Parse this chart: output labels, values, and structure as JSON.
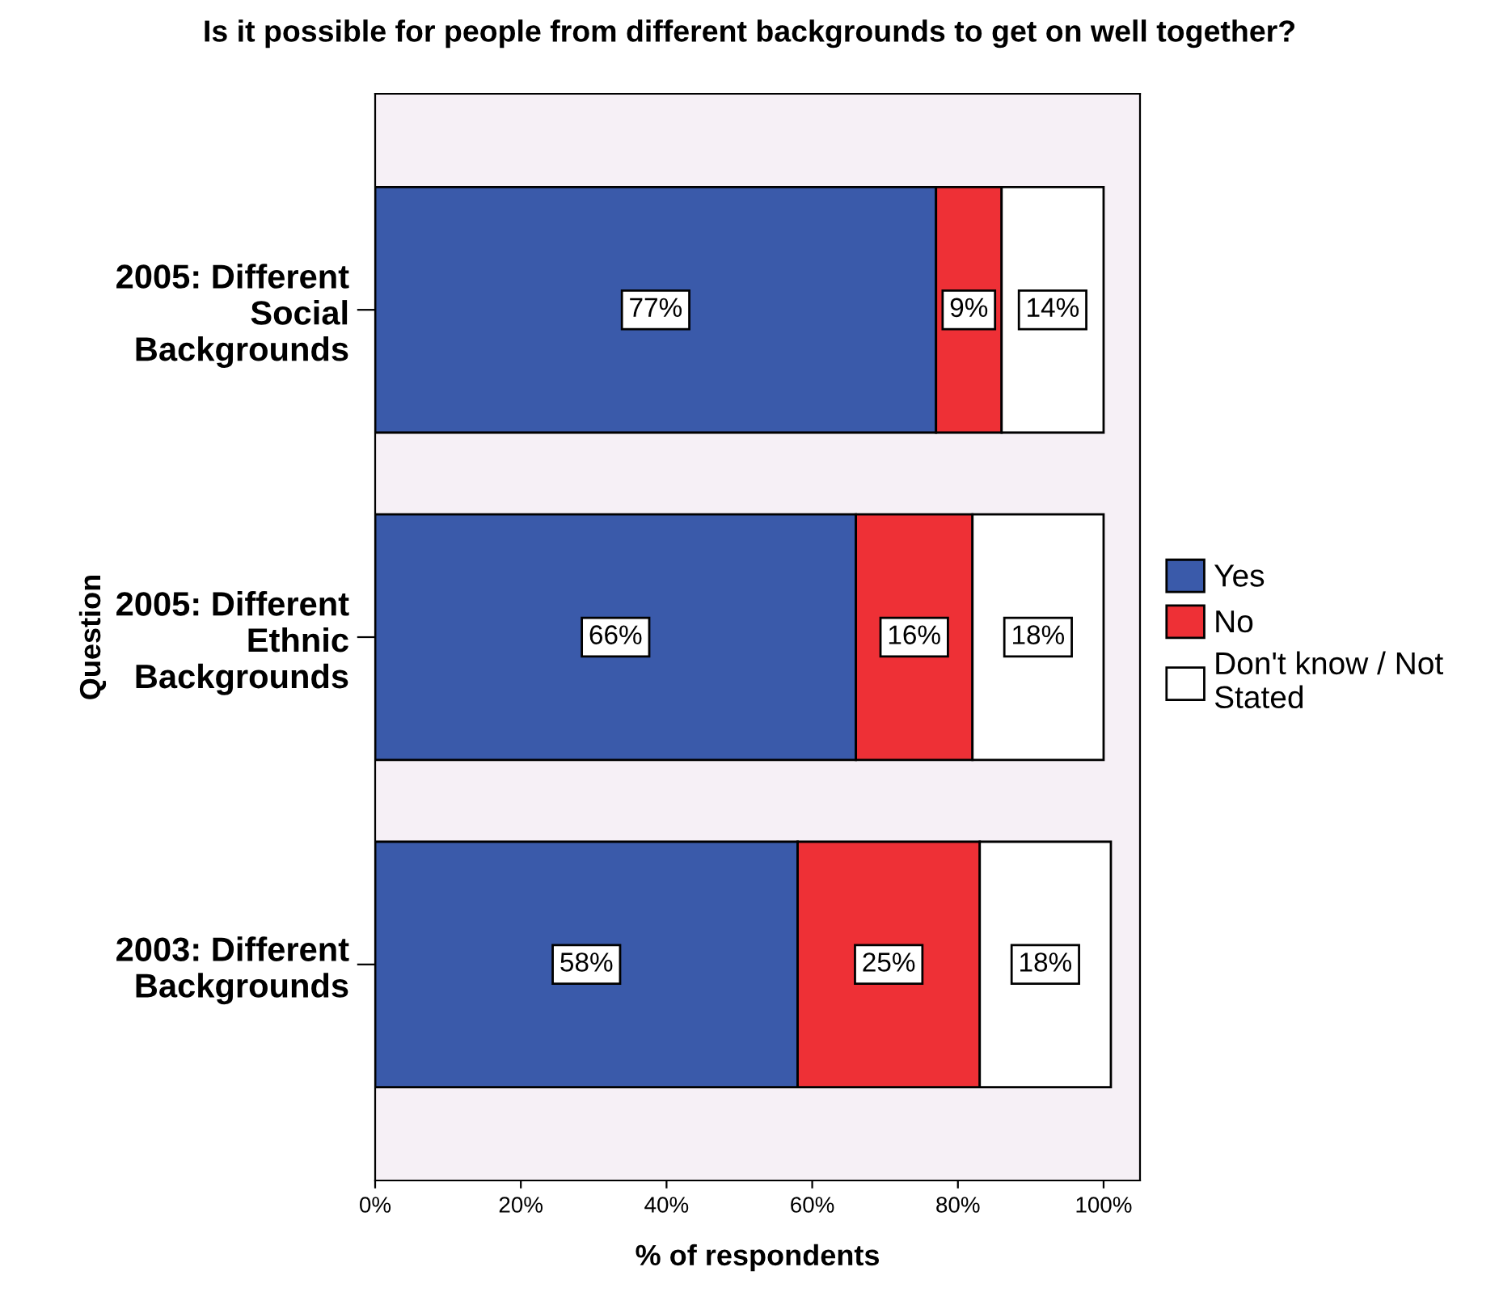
{
  "chart_data": {
    "type": "bar",
    "orientation": "horizontal",
    "stacked": true,
    "title": "Is it possible for people from different backgrounds to get on well together?",
    "xlabel": "% of respondents",
    "ylabel": "Question",
    "categories": [
      "2005: Different\nSocial\nBackgrounds",
      "2005: Different\nEthnic\nBackgrounds",
      "2003: Different\nBackgrounds"
    ],
    "series": [
      {
        "name": "Yes",
        "color": "#3a5aaa",
        "values": [
          77,
          66,
          58
        ],
        "value_labels": [
          "77%",
          "66%",
          "58%"
        ]
      },
      {
        "name": "No",
        "color": "#ee3036",
        "values": [
          9,
          16,
          25
        ],
        "value_labels": [
          "9%",
          "16%",
          "25%"
        ]
      },
      {
        "name": "Don't know / Not\nStated",
        "color": "#ffffff",
        "values": [
          14,
          18,
          18
        ],
        "value_labels": [
          "14%",
          "18%",
          "18%"
        ]
      }
    ],
    "xlim": [
      0,
      105
    ],
    "xticks": [
      {
        "value": 0,
        "label": "0%"
      },
      {
        "value": 20,
        "label": "20%"
      },
      {
        "value": 40,
        "label": "40%"
      },
      {
        "value": 60,
        "label": "60%"
      },
      {
        "value": 80,
        "label": "80%"
      },
      {
        "value": 100,
        "label": "100%"
      }
    ],
    "grid": false,
    "legend": "right"
  }
}
